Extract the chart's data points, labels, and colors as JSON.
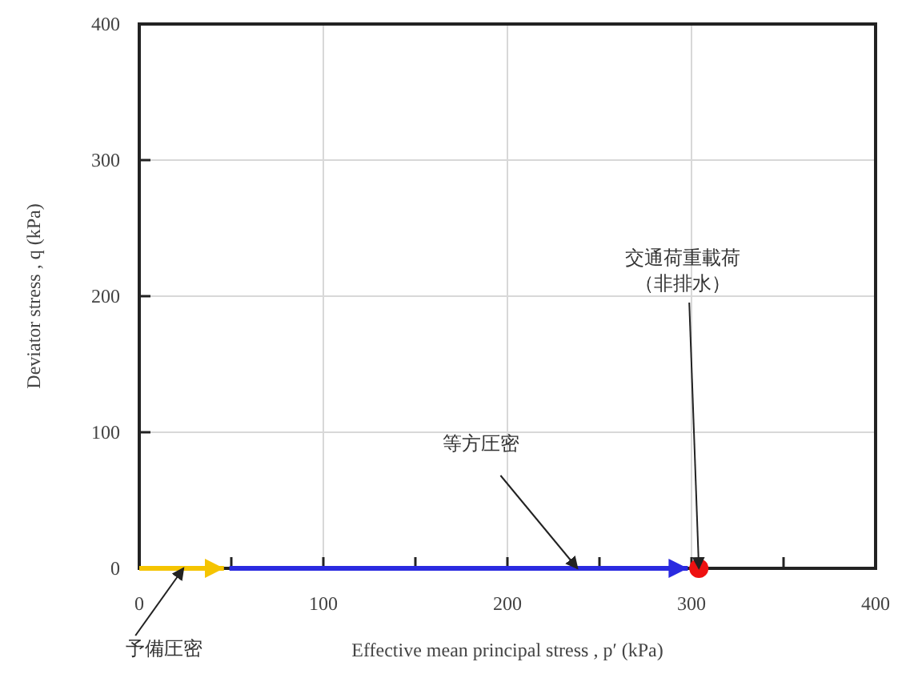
{
  "chart_data": {
    "type": "line",
    "xlabel": "Effective mean principal stress , p′ (kPa)",
    "ylabel": "Deviator stress , q (kPa)",
    "xlim": [
      0,
      400
    ],
    "ylim": [
      0,
      400
    ],
    "xticks": [
      0,
      {
        "value": 50,
        "label": null
      },
      100,
      {
        "value": 150,
        "label": null
      },
      200,
      {
        "value": 250,
        "label": null
      },
      300,
      {
        "value": 350,
        "label": null
      },
      400
    ],
    "yticks": [
      0,
      100,
      200,
      300,
      400
    ],
    "grid": true,
    "marker": "none",
    "line_style": "solid",
    "series": [
      {
        "color": "#f5c400",
        "x": [
          0,
          46
        ],
        "values": [
          0,
          0
        ]
      },
      {
        "color": "#2a2ae0",
        "x": [
          49,
          298
        ],
        "values": [
          0,
          0
        ]
      },
      {
        "type": "scatter",
        "marker": "circle",
        "color": "#ee1111",
        "x": [
          304
        ],
        "values": [
          0
        ]
      }
    ],
    "annotations": [
      {
        "text": "予備圧密",
        "x": 24,
        "y": 0
      },
      {
        "text": "等方圧密",
        "x": 238,
        "y": 0
      },
      {
        "text": "交通荷重載荷（非排水）",
        "x": 304,
        "y": 0
      }
    ]
  }
}
